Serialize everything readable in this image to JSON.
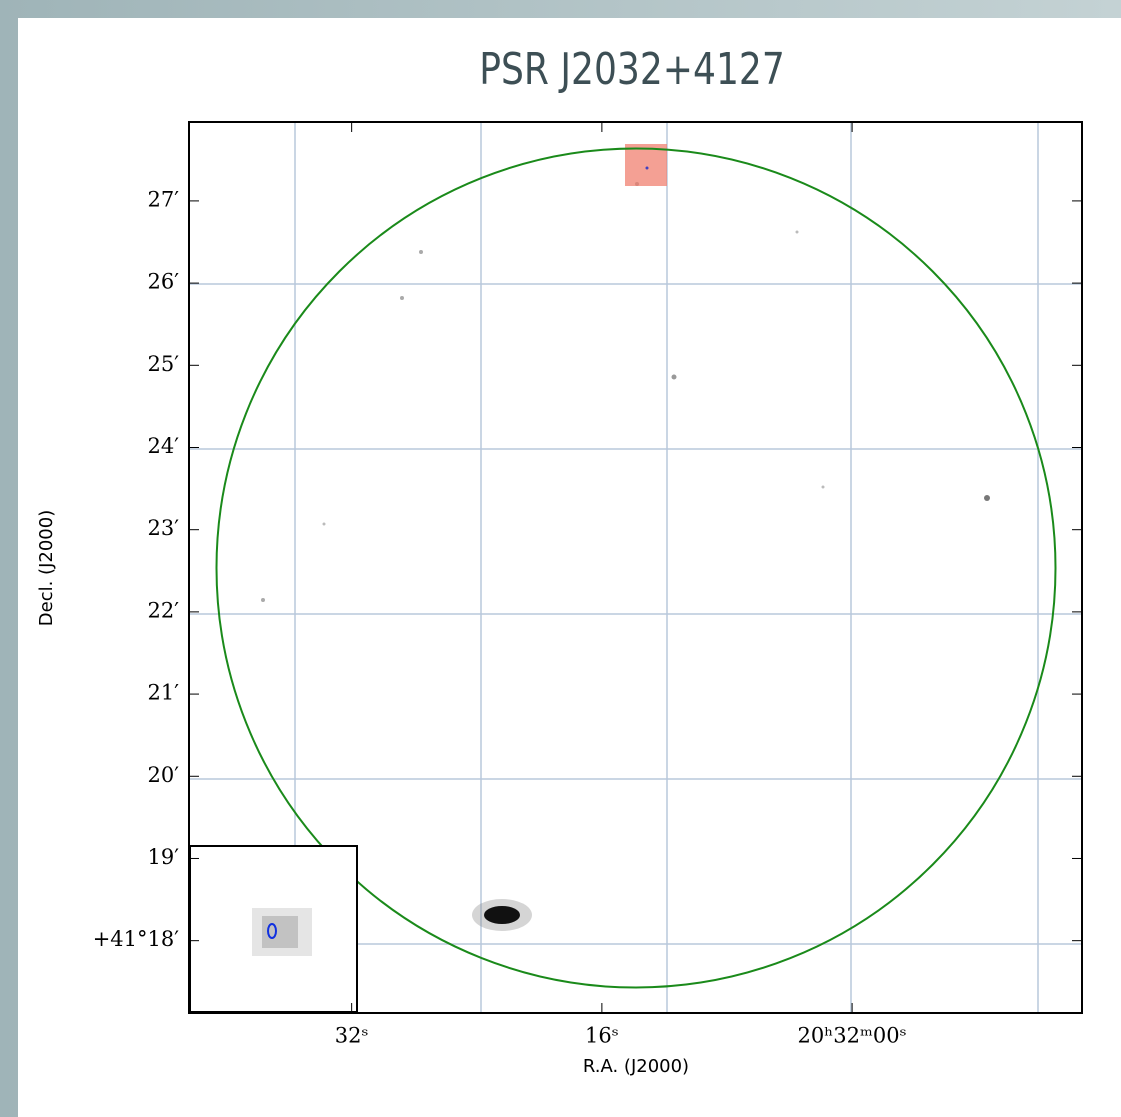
{
  "chart_data": {
    "type": "image",
    "title": "PSR J2032+4127",
    "xlabel": "R.A. (J2000)",
    "ylabel": "Decl. (J2000)",
    "xlim": [
      42.4,
      -14.7
    ],
    "xticks": [
      {
        "value": 32,
        "label": "32ˢ"
      },
      {
        "value": 16,
        "label": "16ˢ"
      },
      {
        "value": 0,
        "label": "20ʰ32ᵐ00ˢ"
      }
    ],
    "ylim": [
      17.12,
      27.96
    ],
    "yticks": [
      {
        "value": 18,
        "label": "+41°18′"
      },
      {
        "value": 19,
        "label": "19′"
      },
      {
        "value": 20,
        "label": "20′"
      },
      {
        "value": 21,
        "label": "21′"
      },
      {
        "value": 22,
        "label": "22′"
      },
      {
        "value": 23,
        "label": "23′"
      },
      {
        "value": 24,
        "label": "24′"
      },
      {
        "value": 25,
        "label": "25′"
      },
      {
        "value": 26,
        "label": "26′"
      },
      {
        "value": 27,
        "label": "27′"
      }
    ]
  }
}
